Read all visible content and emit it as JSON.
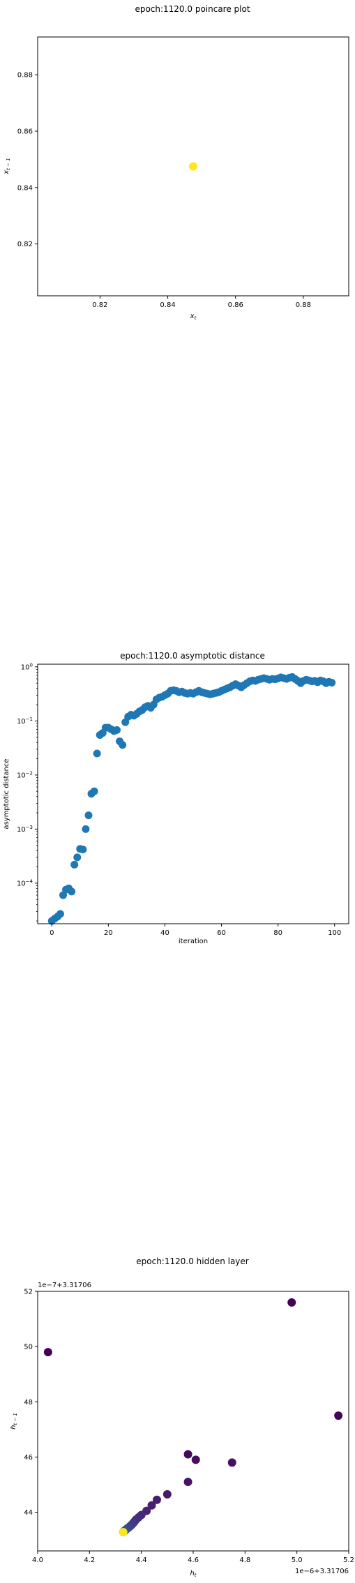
{
  "chart_data": [
    {
      "type": "scatter",
      "title": "epoch:1120.0 poincare plot",
      "xlabel_base": "x",
      "xlabel_sub": "t",
      "ylabel_base": "x",
      "ylabel_sub": "t − 1",
      "xlim": [
        0.8016,
        0.8934
      ],
      "ylim": [
        0.8016,
        0.8934
      ],
      "xticks": [
        0.82,
        0.84,
        0.86,
        0.88
      ],
      "yticks": [
        0.82,
        0.84,
        0.86,
        0.88
      ],
      "xtick_labels": [
        "0.82",
        "0.84",
        "0.86",
        "0.88"
      ],
      "ytick_labels": [
        "0.82",
        "0.84",
        "0.86",
        "0.88"
      ],
      "points": [
        {
          "x": 0.8475,
          "y": 0.8475,
          "color": "#fde725"
        }
      ]
    },
    {
      "type": "scatter",
      "title": "epoch:1120.0 asymptotic distance",
      "xlabel": "iteration",
      "ylabel": "asymptotic distance",
      "yscale": "log",
      "xlim": [
        -5,
        105
      ],
      "ylim_log10": [
        -4.75,
        0.05
      ],
      "xticks": [
        0,
        20,
        40,
        60,
        80,
        100
      ],
      "xtick_labels": [
        "0",
        "20",
        "40",
        "60",
        "80",
        "100"
      ],
      "yticks_exp": [
        -4,
        -3,
        -2,
        -1,
        0
      ],
      "ytick_base": "10",
      "ytick_exps": [
        "−4",
        "−3",
        "−2",
        "−1",
        "0"
      ],
      "color": "#1f77b4",
      "x": [
        0,
        1,
        2,
        3,
        4,
        5,
        6,
        7,
        8,
        9,
        10,
        11,
        12,
        13,
        14,
        15,
        16,
        17,
        18,
        19,
        20,
        21,
        22,
        23,
        24,
        25,
        26,
        27,
        28,
        29,
        30,
        31,
        32,
        33,
        34,
        35,
        36,
        37,
        38,
        39,
        40,
        41,
        42,
        43,
        44,
        45,
        46,
        47,
        48,
        49,
        50,
        51,
        52,
        53,
        54,
        55,
        56,
        57,
        58,
        59,
        60,
        61,
        62,
        63,
        64,
        65,
        66,
        67,
        68,
        69,
        70,
        71,
        72,
        73,
        74,
        75,
        76,
        77,
        78,
        79,
        80,
        81,
        82,
        83,
        84,
        85,
        86,
        87,
        88,
        89,
        90,
        91,
        92,
        93,
        94,
        95,
        96,
        97,
        98,
        99
      ],
      "y": [
        2e-05,
        2.2e-05,
        2.4e-05,
        2.7e-05,
        6e-05,
        7.6e-05,
        8e-05,
        7e-05,
        0.00022,
        0.0003,
        0.00043,
        0.00042,
        0.001,
        0.0018,
        0.0045,
        0.005,
        0.025,
        0.055,
        0.06,
        0.075,
        0.075,
        0.07,
        0.065,
        0.068,
        0.042,
        0.036,
        0.095,
        0.12,
        0.13,
        0.125,
        0.135,
        0.15,
        0.16,
        0.18,
        0.19,
        0.175,
        0.2,
        0.25,
        0.27,
        0.28,
        0.3,
        0.32,
        0.36,
        0.37,
        0.36,
        0.34,
        0.35,
        0.33,
        0.32,
        0.33,
        0.32,
        0.34,
        0.36,
        0.34,
        0.33,
        0.32,
        0.31,
        0.32,
        0.33,
        0.34,
        0.36,
        0.38,
        0.4,
        0.42,
        0.45,
        0.48,
        0.45,
        0.42,
        0.46,
        0.5,
        0.54,
        0.56,
        0.55,
        0.58,
        0.6,
        0.62,
        0.6,
        0.58,
        0.6,
        0.59,
        0.61,
        0.64,
        0.62,
        0.6,
        0.63,
        0.65,
        0.6,
        0.55,
        0.5,
        0.55,
        0.58,
        0.56,
        0.54,
        0.55,
        0.52,
        0.56,
        0.54,
        0.5,
        0.53,
        0.51
      ]
    },
    {
      "type": "scatter",
      "title": "epoch:1120.0 hidden layer",
      "xlabel_base": "h",
      "xlabel_sub": "t",
      "ylabel_base": "h",
      "ylabel_sub": "t − 1",
      "x_offset_text": "1e−6+3.31706",
      "y_offset_text": "1e−7+3.31706",
      "xlim": [
        4.0,
        5.2
      ],
      "ylim": [
        42.6,
        52.0
      ],
      "xticks": [
        4.0,
        4.2,
        4.4,
        4.6,
        4.8,
        5.0,
        5.2
      ],
      "xtick_labels": [
        "4.0",
        "4.2",
        "4.4",
        "4.6",
        "4.8",
        "5.0",
        "5.2"
      ],
      "yticks": [
        44,
        46,
        48,
        50,
        52
      ],
      "ytick_labels": [
        "44",
        "46",
        "48",
        "50",
        "52"
      ],
      "points": [
        {
          "x": 4.04,
          "y": 49.8,
          "color": "#440154"
        },
        {
          "x": 4.98,
          "y": 51.6,
          "color": "#440154"
        },
        {
          "x": 5.16,
          "y": 47.5,
          "color": "#450559"
        },
        {
          "x": 4.58,
          "y": 46.1,
          "color": "#46085c"
        },
        {
          "x": 4.61,
          "y": 45.9,
          "color": "#470d60"
        },
        {
          "x": 4.75,
          "y": 45.8,
          "color": "#471063"
        },
        {
          "x": 4.58,
          "y": 45.1,
          "color": "#481467"
        },
        {
          "x": 4.5,
          "y": 44.65,
          "color": "#48186a"
        },
        {
          "x": 4.46,
          "y": 44.45,
          "color": "#481c6e"
        },
        {
          "x": 4.44,
          "y": 44.25,
          "color": "#482071"
        },
        {
          "x": 4.42,
          "y": 44.05,
          "color": "#482374"
        },
        {
          "x": 4.4,
          "y": 43.9,
          "color": "#472777"
        },
        {
          "x": 4.39,
          "y": 43.82,
          "color": "#472a7a"
        },
        {
          "x": 4.38,
          "y": 43.74,
          "color": "#462e7c"
        },
        {
          "x": 4.375,
          "y": 43.68,
          "color": "#45317e"
        },
        {
          "x": 4.37,
          "y": 43.62,
          "color": "#443581"
        },
        {
          "x": 4.365,
          "y": 43.57,
          "color": "#433883"
        },
        {
          "x": 4.36,
          "y": 43.52,
          "color": "#423b85"
        },
        {
          "x": 4.355,
          "y": 43.48,
          "color": "#413e86"
        },
        {
          "x": 4.35,
          "y": 43.44,
          "color": "#3f4288"
        },
        {
          "x": 4.345,
          "y": 43.41,
          "color": "#3e4589"
        },
        {
          "x": 4.342,
          "y": 43.38,
          "color": "#3c488a"
        },
        {
          "x": 4.339,
          "y": 43.36,
          "color": "#3a4b8b"
        },
        {
          "x": 4.337,
          "y": 43.34,
          "color": "#394e8c"
        },
        {
          "x": 4.335,
          "y": 43.32,
          "color": "#37518c"
        },
        {
          "x": 4.333,
          "y": 43.31,
          "color": "#35548d"
        },
        {
          "x": 4.332,
          "y": 43.3,
          "color": "#34578d"
        },
        {
          "x": 4.331,
          "y": 43.29,
          "color": "#325a8e"
        },
        {
          "x": 4.33,
          "y": 43.28,
          "color": "#2e608e"
        },
        {
          "x": 4.33,
          "y": 43.28,
          "color": "#22a884"
        },
        {
          "x": 4.33,
          "y": 43.28,
          "color": "#fde725"
        }
      ]
    }
  ]
}
